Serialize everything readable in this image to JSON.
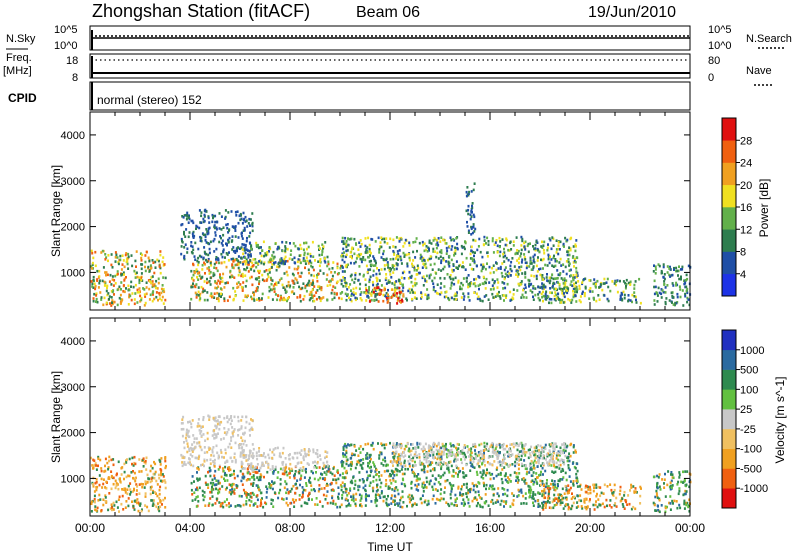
{
  "header": {
    "station": "Zhongshan Station (fitACF)",
    "beam": "Beam 06",
    "date": "19/Jun/2010"
  },
  "strip_labels": {
    "nsky": "N.Sky",
    "nsky_ticks": [
      "10^5",
      "10^0"
    ],
    "nsearch": "N.Search",
    "nsearch_ticks": [
      "10^5",
      "10^0"
    ],
    "freq": "Freq.",
    "freq_unit": "[MHz]",
    "freq_ticks": [
      "18",
      "8"
    ],
    "nave": "Nave",
    "nave_ticks": [
      "80",
      "0"
    ],
    "cpid": "CPID",
    "cpid_value": "normal (stereo) 152"
  },
  "colors": {
    "power": [
      "#1d33e6",
      "#1f4fa6",
      "#2e7d4f",
      "#62b04a",
      "#f0e020",
      "#f0a020",
      "#f06010",
      "#e01010"
    ],
    "velocity": [
      "#e01010",
      "#f06010",
      "#f0a020",
      "#f0c060",
      "#c8c8c8",
      "#62c040",
      "#2e8a4f",
      "#2a6aa0",
      "#2030c0"
    ]
  },
  "chart_data": [
    {
      "type": "heatmap",
      "name": "power",
      "xlabel": "",
      "ylabel": "Slant Range [km]",
      "x_range_hours": [
        0,
        24
      ],
      "ylim": [
        180,
        4500
      ],
      "y_ticks": [
        "1000",
        "2000",
        "3000",
        "4000"
      ],
      "colorbar_label": "Power [dB]",
      "colorbar_ticks": [
        "4",
        "8",
        "12",
        "16",
        "20",
        "24",
        "28"
      ],
      "colorbar_range": [
        0,
        32
      ],
      "echo_regions": [
        {
          "t": [
            0.0,
            3.0
          ],
          "r": [
            300,
            1500
          ],
          "level": "mid-high"
        },
        {
          "t": [
            3.6,
            6.5
          ],
          "r": [
            1300,
            2400
          ],
          "level": "low"
        },
        {
          "t": [
            4.0,
            10.0
          ],
          "r": [
            400,
            1300
          ],
          "level": "mid-high"
        },
        {
          "t": [
            6.0,
            9.5
          ],
          "r": [
            1200,
            1700
          ],
          "level": "mid"
        },
        {
          "t": [
            10.0,
            19.5
          ],
          "r": [
            400,
            1800
          ],
          "level": "mid"
        },
        {
          "t": [
            11.0,
            12.5
          ],
          "r": [
            350,
            700
          ],
          "level": "high"
        },
        {
          "t": [
            15.0,
            15.4
          ],
          "r": [
            1800,
            3000
          ],
          "level": "low"
        },
        {
          "t": [
            18.0,
            22.0
          ],
          "r": [
            350,
            900
          ],
          "level": "mid"
        },
        {
          "t": [
            22.5,
            24.0
          ],
          "r": [
            300,
            1200
          ],
          "level": "low-mid"
        }
      ]
    },
    {
      "type": "heatmap",
      "name": "velocity",
      "xlabel": "Time UT",
      "ylabel": "Slant Range [km]",
      "x_ticks": [
        "00:00",
        "04:00",
        "08:00",
        "12:00",
        "16:00",
        "20:00",
        "00:00"
      ],
      "x_range_hours": [
        0,
        24
      ],
      "ylim": [
        180,
        4500
      ],
      "y_ticks": [
        "1000",
        "2000",
        "3000",
        "4000"
      ],
      "colorbar_label": "Velocity [m s^-1]",
      "colorbar_ticks": [
        "1000",
        "500",
        "100",
        "25",
        "-25",
        "-100",
        "-500",
        "-1000"
      ],
      "echo_regions": [
        {
          "t": [
            0.0,
            3.0
          ],
          "r": [
            300,
            1500
          ],
          "v": "negative"
        },
        {
          "t": [
            3.6,
            6.5
          ],
          "r": [
            1300,
            2400
          ],
          "v": "ground-scatter"
        },
        {
          "t": [
            4.0,
            10.0
          ],
          "r": [
            400,
            1300
          ],
          "v": "mixed"
        },
        {
          "t": [
            6.0,
            9.5
          ],
          "r": [
            1200,
            1700
          ],
          "v": "ground-scatter"
        },
        {
          "t": [
            10.0,
            19.5
          ],
          "r": [
            400,
            1800
          ],
          "v": "positive"
        },
        {
          "t": [
            12.0,
            19.0
          ],
          "r": [
            1300,
            1800
          ],
          "v": "ground-scatter"
        },
        {
          "t": [
            18.0,
            22.0
          ],
          "r": [
            350,
            900
          ],
          "v": "negative"
        },
        {
          "t": [
            22.5,
            24.0
          ],
          "r": [
            300,
            1200
          ],
          "v": "positive"
        }
      ]
    }
  ]
}
